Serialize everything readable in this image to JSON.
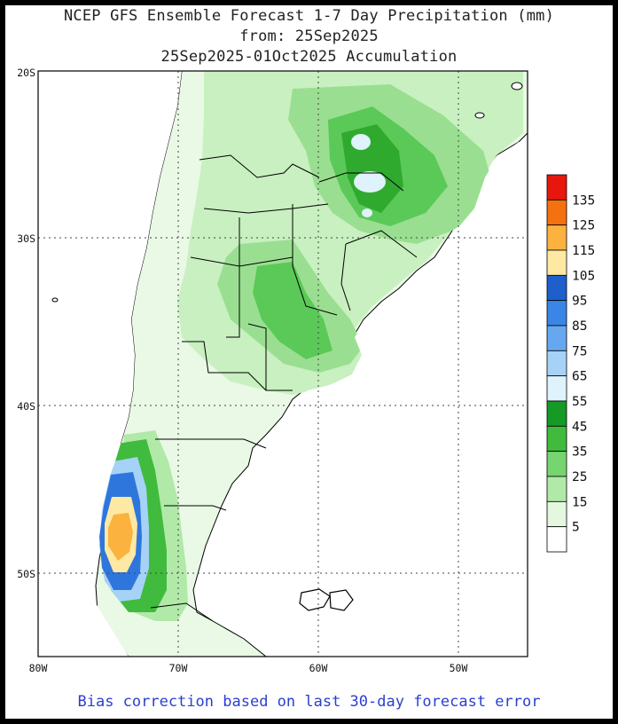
{
  "title": {
    "line1": "NCEP GFS Ensemble Forecast 1-7 Day Precipitation (mm)",
    "line2": "from: 25Sep2025",
    "line3": "25Sep2025-01Oct2025 Accumulation"
  },
  "footer": "Bias correction based on last 30-day forecast error",
  "axes": {
    "lat_labels": [
      "20S",
      "30S",
      "40S",
      "50S"
    ],
    "lon_labels": [
      "80W",
      "70W",
      "60W",
      "50W"
    ],
    "lat_range": [
      -55,
      -20
    ],
    "lon_range": [
      -80,
      -45
    ]
  },
  "colorbar": {
    "labels": [
      "135",
      "125",
      "115",
      "105",
      "95",
      "85",
      "75",
      "65",
      "55",
      "45",
      "35",
      "25",
      "15",
      "5"
    ],
    "colors": [
      "#e8170e",
      "#f5700f",
      "#fbb23f",
      "#fde9a4",
      "#1f5fcc",
      "#3a86e6",
      "#66a8f0",
      "#a6d2f8",
      "#def3fb",
      "#159a25",
      "#40bb3d",
      "#76d471",
      "#b1e9a8",
      "#e3f8df",
      "#ffffff"
    ]
  }
}
